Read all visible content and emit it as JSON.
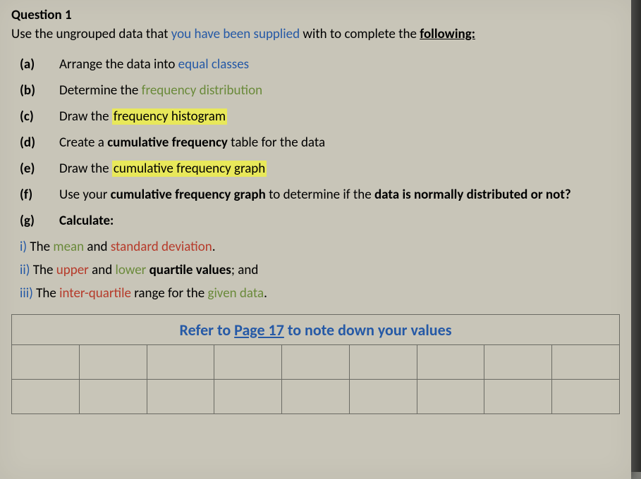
{
  "question": {
    "label": "Question 1",
    "instruction_pre": "Use the ungrouped data that ",
    "instruction_mid": "you have been supplied",
    "instruction_post": " with to complete the ",
    "instruction_end": "following:"
  },
  "items": {
    "a": {
      "label": "(a)",
      "t1": "Arrange the data into ",
      "t2": "equal classes"
    },
    "b": {
      "label": "(b)",
      "t1": "Determine the ",
      "t2": "frequency distribution"
    },
    "c": {
      "label": "(c)",
      "t1": "Draw the ",
      "t2": "frequency histogram"
    },
    "d": {
      "label": "(d)",
      "t1": "Create a ",
      "t2": "cumulative frequency",
      "t3": " table for the data"
    },
    "e": {
      "label": "(e)",
      "t1": "Draw the ",
      "t2": "cumulative frequency graph"
    },
    "f": {
      "label": "(f)",
      "t1": "Use your ",
      "t2": "cumulative frequency graph",
      "t3": " to determine if the ",
      "t4": "data is normally distributed or not?"
    },
    "g": {
      "label": "(g)",
      "t1": "Calculate:"
    }
  },
  "subs": {
    "i": {
      "label": "i)",
      "t1": " The ",
      "t2": "mean",
      "t3": " and ",
      "t4": "standard deviation",
      "t5": "."
    },
    "ii": {
      "label": "ii)",
      "t1": " The ",
      "t2": "upper",
      "t3": " and ",
      "t4": "lower",
      "t5": " quartile values",
      "t6": "; and"
    },
    "iii": {
      "label": "iii)",
      "t1": " The ",
      "t2": "inter-quartile",
      "t3": " range for the ",
      "t4": "given data",
      "t5": "."
    }
  },
  "table": {
    "title_pre": "Refer to ",
    "title_link": "Page 17",
    "title_post": " to note down your values",
    "columns": 9,
    "rows": 2
  }
}
